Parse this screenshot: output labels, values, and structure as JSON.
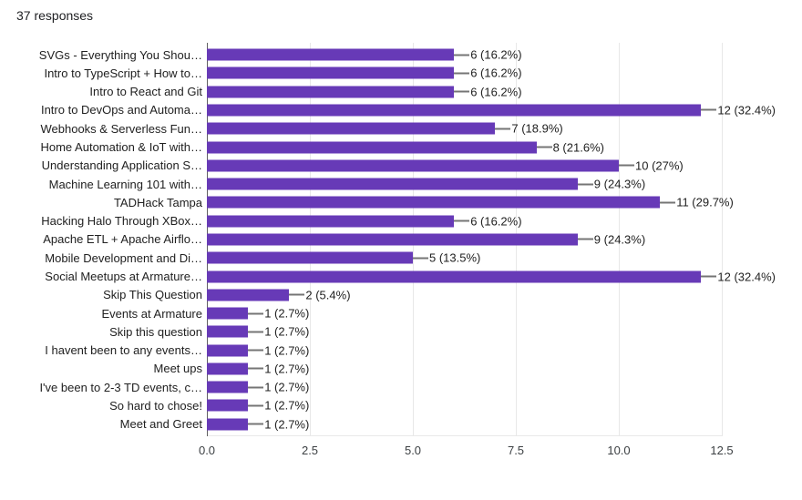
{
  "header": {
    "responses_text": "37 responses"
  },
  "chart_data": {
    "type": "bar",
    "orientation": "horizontal",
    "title": "",
    "xlabel": "",
    "ylabel": "",
    "xlim": [
      0,
      12.5
    ],
    "grid": true,
    "legend": "none",
    "bar_color": "#673ab7",
    "x_ticks": [
      "0.0",
      "2.5",
      "5.0",
      "7.5",
      "10.0",
      "12.5"
    ],
    "categories": [
      "SVGs - Everything You Shou…",
      "Intro to TypeScript + How to…",
      "Intro to React and Git",
      "Intro to DevOps and Automa…",
      "Webhooks & Serverless Fun…",
      "Home Automation & IoT with…",
      "Understanding Application S…",
      "Machine Learning 101 with…",
      "TADHack Tampa",
      "Hacking Halo Through XBox…",
      "Apache ETL + Apache Airflo…",
      "Mobile Development and Di…",
      "Social Meetups at Armature…",
      "Skip This Question",
      "Events at Armature",
      "Skip this question",
      "I havent been to any events…",
      "Meet ups",
      "I've been to 2-3 TD events, c…",
      "So hard to chose!",
      "Meet and Greet"
    ],
    "values": [
      6,
      6,
      6,
      12,
      7,
      8,
      10,
      9,
      11,
      6,
      9,
      5,
      12,
      2,
      1,
      1,
      1,
      1,
      1,
      1,
      1
    ],
    "value_labels": [
      "6 (16.2%)",
      "6 (16.2%)",
      "6 (16.2%)",
      "12 (32.4%)",
      "7 (18.9%)",
      "8 (21.6%)",
      "10 (27%)",
      "9 (24.3%)",
      "11 (29.7%)",
      "6 (16.2%)",
      "9 (24.3%)",
      "5 (13.5%)",
      "12 (32.4%)",
      "2 (5.4%)",
      "1 (2.7%)",
      "1 (2.7%)",
      "1 (2.7%)",
      "1 (2.7%)",
      "1 (2.7%)",
      "1 (2.7%)",
      "1 (2.7%)"
    ]
  }
}
